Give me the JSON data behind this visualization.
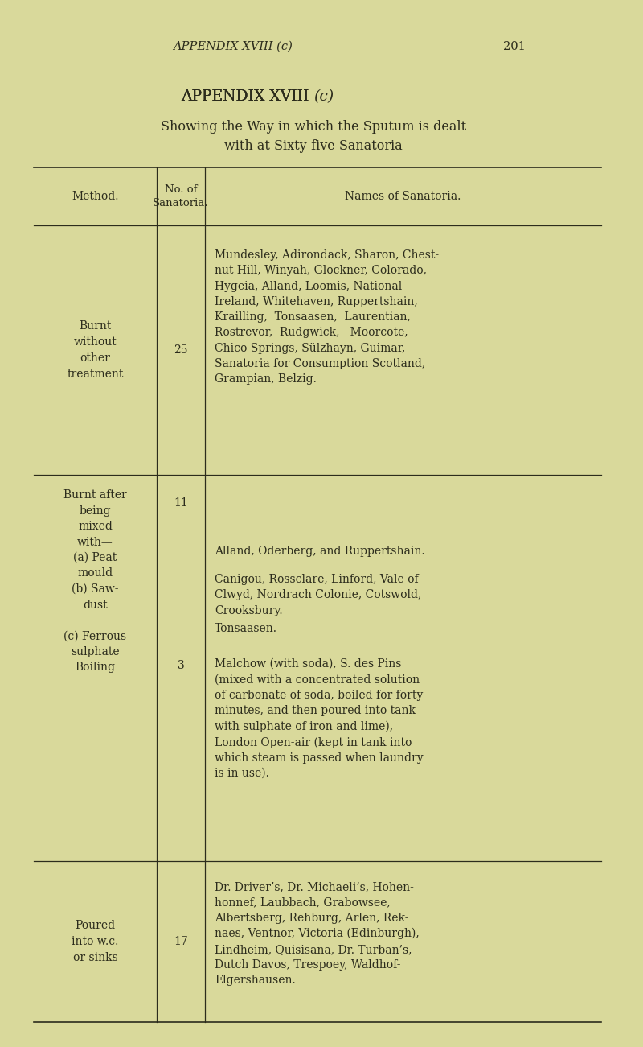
{
  "bg_color": "#d9d99b",
  "text_color": "#2c2c1c",
  "page_header_italic": "APPENDIX XVIII (c)",
  "page_number": "201",
  "title_line1": "APPENDIX XVIII (c)",
  "title_line2_left": "Showing the Way in which the Sputum is dealt",
  "title_line3": "with at Sixty-five Sanatoria",
  "col1_header": "Method.",
  "col2_header": "No. of\nSanatoria.",
  "col3_header": "Names of Sanatoria.",
  "row1_method": "Burnt\nwithout\nother\ntreatment",
  "row1_number": "25",
  "row1_names": "Mundesley, Adirondack, Sharon, Chest-\nnut Hill, Winyah, Glockner, Colorado,\nHygeia, Alland, Loomis, National\nIreland, Whitehaven, Ruppertshain,\nKrailling,  Tonsaasen,  Laurentian,\nRostrevor,  Rudgwick,   Moorcote,\nChico Springs, Sülzhayn, Guimar,\nSanatoria for Consumption Scotland,\nGrampian, Belzig.",
  "row2_method": "Burnt after\nbeing\nmixed\nwith—\n(a) Peat\nmould\n(b) Saw-\ndust\n\n(c) Ferrous\nsulphate\nBoiling",
  "row2_number_top": "11",
  "row2_number_boiling": "3",
  "row2_name_a": "Alland, Oderberg, and Ruppertshain.",
  "row2_name_b": "Canigou, Rossclare, Linford, Vale of\nClwyd, Nordrach Colonie, Cotswold,\nCrooksbury.",
  "row2_name_c": "Tonsaasen.",
  "row2_name_boiling": "Malchow (with soda), S. des Pins\n(mixed with a concentrated solution\nof carbonate of soda, boiled for forty\nminutes, and then poured into tank\nwith sulphate of iron and lime),\nLondon Open-air (kept in tank into\nwhich steam is passed when laundry\nis in use).",
  "row3_method": "Poured\ninto w.c.\nor sinks",
  "row3_number": "17",
  "row3_names": "Dr. Driver’s, Dr. Michaeli’s, Hohen-\nhonnef, Laubbach, Grabowsee,\nAlbertsberg, Rehburg, Arlen, Rek-\nnaes, Ventnor, Victoria (Edinburgh),\nLindheim, Quisisana, Dr. Turban’s,\nDutch Davos, Trespoey, Waldhof-\nElgershausen."
}
